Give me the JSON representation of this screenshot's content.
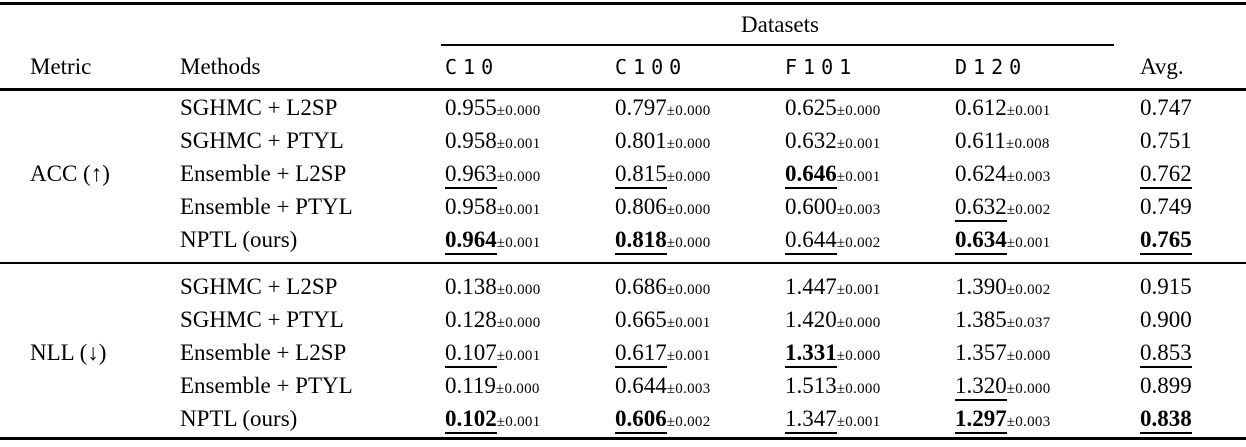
{
  "table": {
    "group_header": "Datasets",
    "headers": {
      "metric": "Metric",
      "methods": "Methods",
      "datasets": [
        "C10",
        "C100",
        "F101",
        "D120"
      ],
      "avg": "Avg."
    },
    "sections": [
      {
        "metric": "ACC (↑)",
        "rows": [
          {
            "method": "SGHMC + L2SP",
            "cells": [
              {
                "v": "0.955",
                "pm": "±0.000"
              },
              {
                "v": "0.797",
                "pm": "±0.000"
              },
              {
                "v": "0.625",
                "pm": "±0.000"
              },
              {
                "v": "0.612",
                "pm": "±0.001"
              },
              {
                "v": "0.747"
              }
            ]
          },
          {
            "method": "SGHMC + PTYL",
            "cells": [
              {
                "v": "0.958",
                "pm": "±0.001"
              },
              {
                "v": "0.801",
                "pm": "±0.000"
              },
              {
                "v": "0.632",
                "pm": "±0.001"
              },
              {
                "v": "0.611",
                "pm": "±0.008"
              },
              {
                "v": "0.751"
              }
            ]
          },
          {
            "method": "Ensemble + L2SP",
            "cells": [
              {
                "v": "0.963",
                "pm": "±0.000",
                "u": true
              },
              {
                "v": "0.815",
                "pm": "±0.000",
                "u": true
              },
              {
                "v": "0.646",
                "pm": "±0.001",
                "b": true,
                "u": true
              },
              {
                "v": "0.624",
                "pm": "±0.003"
              },
              {
                "v": "0.762",
                "u": true
              }
            ]
          },
          {
            "method": "Ensemble + PTYL",
            "cells": [
              {
                "v": "0.958",
                "pm": "±0.001"
              },
              {
                "v": "0.806",
                "pm": "±0.000"
              },
              {
                "v": "0.600",
                "pm": "±0.003"
              },
              {
                "v": "0.632",
                "pm": "±0.002",
                "u": true
              },
              {
                "v": "0.749"
              }
            ]
          },
          {
            "method": "NPTL (ours)",
            "cells": [
              {
                "v": "0.964",
                "pm": "±0.001",
                "b": true,
                "u": true
              },
              {
                "v": "0.818",
                "pm": "±0.000",
                "b": true,
                "u": true
              },
              {
                "v": "0.644",
                "pm": "±0.002",
                "u": true
              },
              {
                "v": "0.634",
                "pm": "±0.001",
                "b": true,
                "u": true
              },
              {
                "v": "0.765",
                "b": true,
                "u": true
              }
            ]
          }
        ]
      },
      {
        "metric": "NLL (↓)",
        "rows": [
          {
            "method": "SGHMC + L2SP",
            "cells": [
              {
                "v": "0.138",
                "pm": "±0.000"
              },
              {
                "v": "0.686",
                "pm": "±0.000"
              },
              {
                "v": "1.447",
                "pm": "±0.001"
              },
              {
                "v": "1.390",
                "pm": "±0.002"
              },
              {
                "v": "0.915"
              }
            ]
          },
          {
            "method": "SGHMC + PTYL",
            "cells": [
              {
                "v": "0.128",
                "pm": "±0.000"
              },
              {
                "v": "0.665",
                "pm": "±0.001"
              },
              {
                "v": "1.420",
                "pm": "±0.000"
              },
              {
                "v": "1.385",
                "pm": "±0.037"
              },
              {
                "v": "0.900"
              }
            ]
          },
          {
            "method": "Ensemble + L2SP",
            "cells": [
              {
                "v": "0.107",
                "pm": "±0.001",
                "u": true
              },
              {
                "v": "0.617",
                "pm": "±0.001",
                "u": true
              },
              {
                "v": "1.331",
                "pm": "±0.000",
                "b": true,
                "u": true
              },
              {
                "v": "1.357",
                "pm": "±0.000"
              },
              {
                "v": "0.853",
                "u": true
              }
            ]
          },
          {
            "method": "Ensemble + PTYL",
            "cells": [
              {
                "v": "0.119",
                "pm": "±0.000"
              },
              {
                "v": "0.644",
                "pm": "±0.003"
              },
              {
                "v": "1.513",
                "pm": "±0.000"
              },
              {
                "v": "1.320",
                "pm": "±0.000",
                "u": true
              },
              {
                "v": "0.899"
              }
            ]
          },
          {
            "method": "NPTL (ours)",
            "cells": [
              {
                "v": "0.102",
                "pm": "±0.001",
                "b": true,
                "u": true
              },
              {
                "v": "0.606",
                "pm": "±0.002",
                "b": true,
                "u": true
              },
              {
                "v": "1.347",
                "pm": "±0.001",
                "u": true
              },
              {
                "v": "1.297",
                "pm": "±0.003",
                "b": true,
                "u": true
              },
              {
                "v": "0.838",
                "b": true,
                "u": true
              }
            ]
          }
        ]
      }
    ]
  }
}
